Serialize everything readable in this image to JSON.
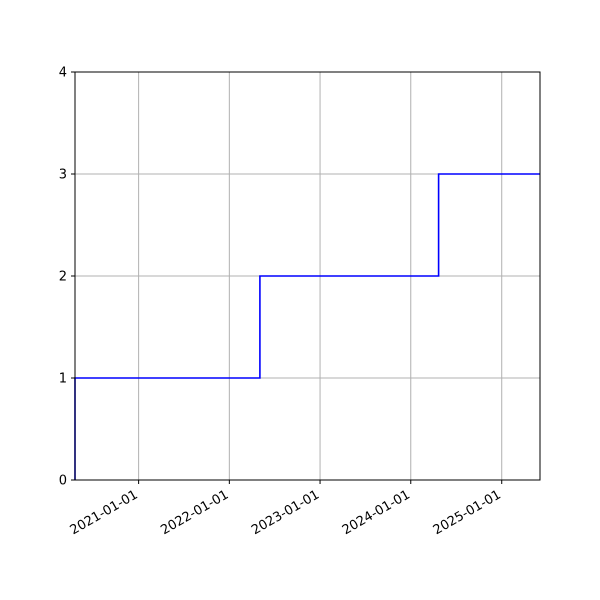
{
  "chart_data": {
    "type": "line",
    "drawstyle": "steps-post",
    "title": "",
    "xlabel": "",
    "ylabel": "",
    "x_axis_type": "date",
    "xlim": [
      "2020-04-20",
      "2025-06-04"
    ],
    "ylim": [
      0,
      4
    ],
    "grid": true,
    "legend": "none",
    "x_ticks": [
      "2021-01-01",
      "2022-01-01",
      "2023-01-01",
      "2024-01-01",
      "2025-01-01"
    ],
    "y_ticks": [
      0,
      1,
      2,
      3,
      4
    ],
    "series": [
      {
        "color": "#0000ff",
        "points": [
          {
            "x": "2020-04-20",
            "y": 0
          },
          {
            "x": "2020-04-20",
            "y": 1
          },
          {
            "x": "2022-05-04",
            "y": 2
          },
          {
            "x": "2024-04-22",
            "y": 3
          },
          {
            "x": "2025-06-04",
            "y": 3
          }
        ]
      }
    ]
  },
  "colors": {
    "line": "#0000ff",
    "grid": "#b0b0b0",
    "axes": "#000000"
  }
}
